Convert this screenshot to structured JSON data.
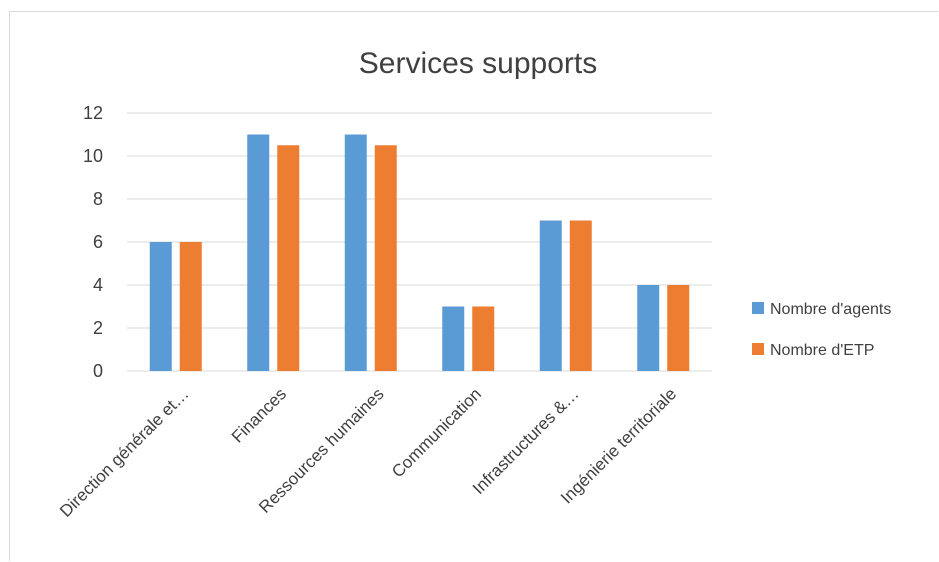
{
  "chart_data": {
    "type": "bar",
    "title": "Services supports",
    "categories": [
      "Direction générale et…",
      "Finances",
      "Ressources humaines",
      "Communication",
      "Infrastructures &…",
      "Ingénierie territoriale"
    ],
    "series": [
      {
        "name": "Nombre d'agents",
        "color": "#5B9BD5",
        "values": [
          6,
          11,
          11,
          3,
          7,
          4
        ]
      },
      {
        "name": "Nombre d'ETP",
        "color": "#ED7D31",
        "values": [
          6,
          10.5,
          10.5,
          3,
          7,
          4
        ]
      }
    ],
    "ylim": [
      0,
      12
    ],
    "yticks": [
      0,
      2,
      4,
      6,
      8,
      10,
      12
    ],
    "grid": true,
    "legend_position": "right"
  }
}
